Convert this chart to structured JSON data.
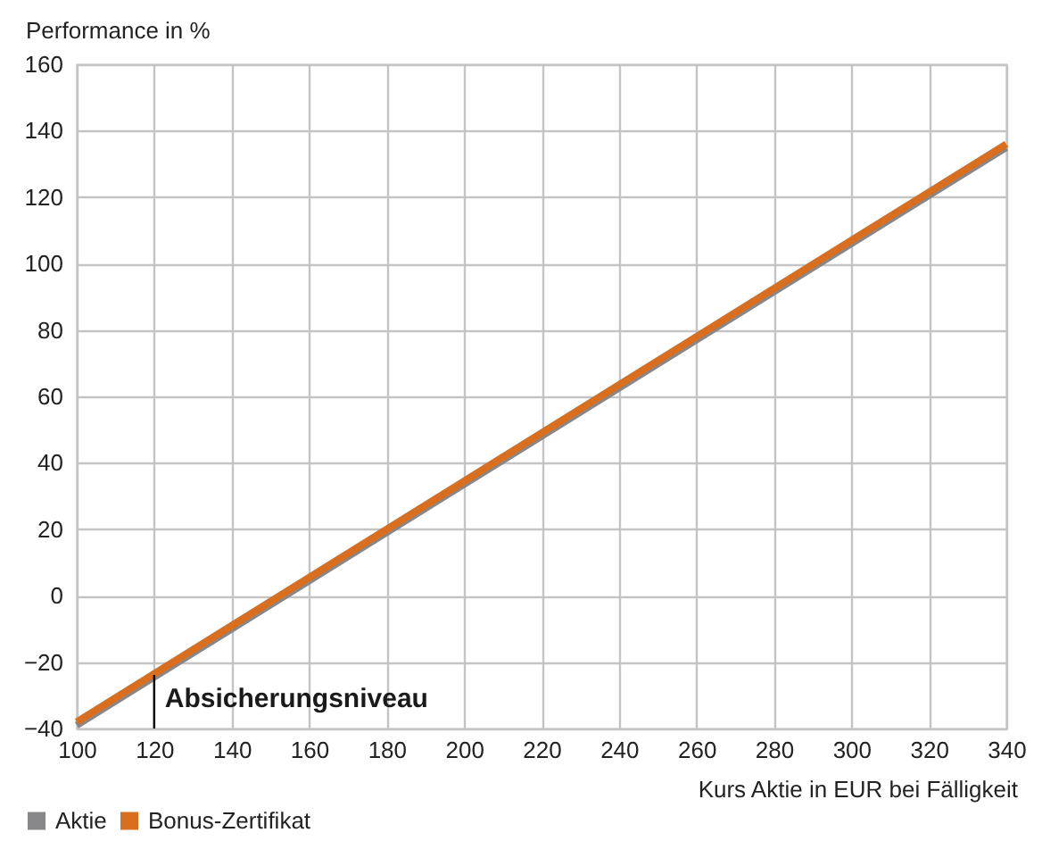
{
  "chart_data": {
    "type": "line",
    "xlabel": "Kurs Aktie in EUR bei Fälligkeit",
    "ylabel": "Performance in %",
    "x": [
      100,
      340
    ],
    "series": [
      {
        "name": "Aktie",
        "color": "#87878a",
        "values": [
          -39,
          135
        ]
      },
      {
        "name": "Bonus-Zertifikat",
        "color": "#d96f1e",
        "values": [
          -38,
          136
        ]
      }
    ],
    "xlim": [
      100,
      340
    ],
    "xticks": [
      100,
      120,
      140,
      160,
      180,
      200,
      220,
      240,
      260,
      280,
      300,
      320,
      340
    ],
    "ylim": [
      -40,
      160
    ],
    "yticks": [
      -40,
      -20,
      0,
      20,
      40,
      60,
      80,
      100,
      120,
      140,
      160
    ],
    "grid": true,
    "legend": "bottom left",
    "ref_lines": [
      {
        "axis": "x",
        "value": 120,
        "label": "Absicherungsniveau",
        "color": "#000000"
      }
    ]
  }
}
